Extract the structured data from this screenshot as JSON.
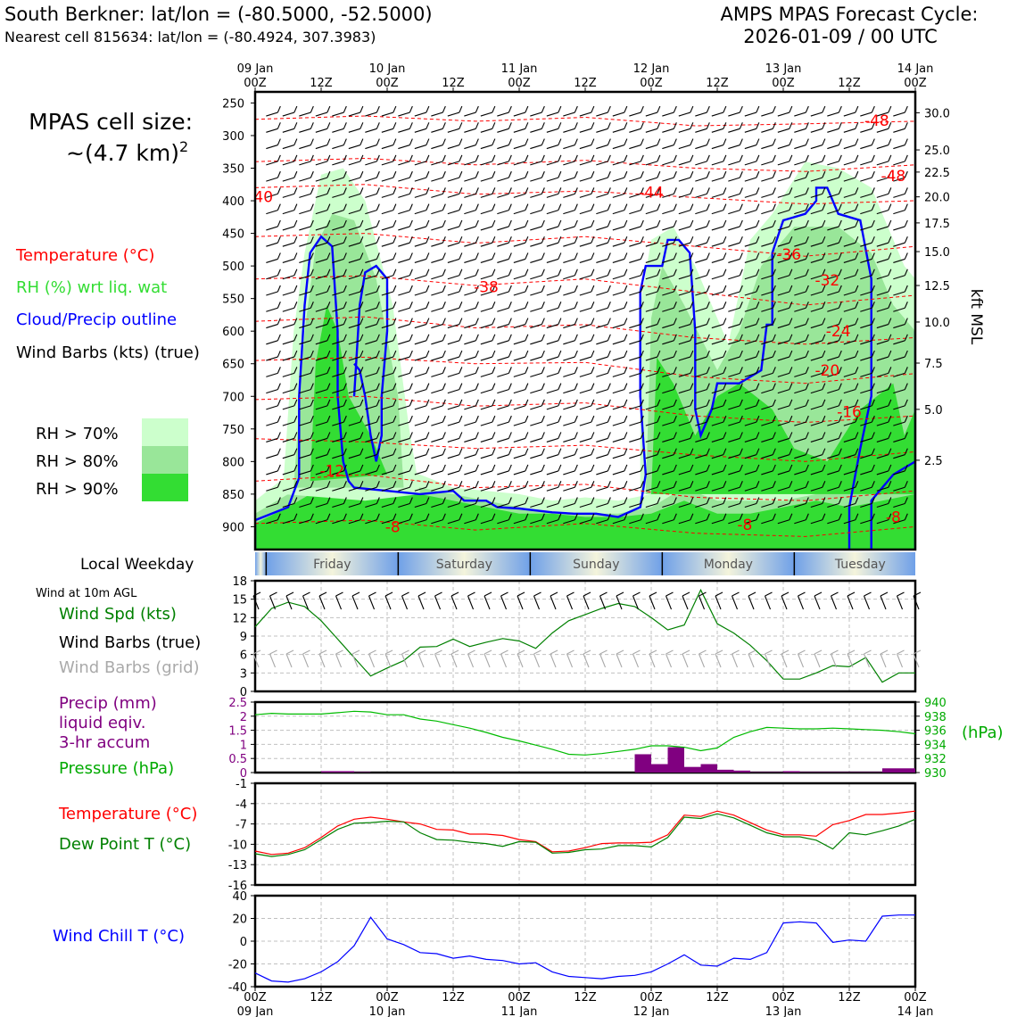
{
  "header": {
    "site_title": "South Berkner: lat/lon = (-80.5000, -52.5000)",
    "nearest_cell": "Nearest cell 815634: lat/lon = (-80.4924, 307.3983)",
    "cycle_line1": "AMPS MPAS Forecast Cycle:",
    "cycle_line2": "2026-01-09 / 00 UTC"
  },
  "legend": {
    "cell_size_line1": "MPAS cell size:",
    "cell_size_line2_base": "~(4.7 km)",
    "cell_size_line2_exp": "2",
    "temperature": "Temperature (°C)",
    "rh": "RH (%) wrt liq. wat",
    "cloud": "Cloud/Precip outline",
    "wind": "Wind Barbs (kts) (true)",
    "rh70": "RH > 70%",
    "rh80": "RH > 80%",
    "rh90": "RH > 90%",
    "local_weekday": "Local Weekday",
    "wind_10m": "Wind at 10m AGL",
    "wind_spd": "Wind Spd (kts)",
    "wind_barbs_true": "Wind Barbs (true)",
    "wind_barbs_grid": "Wind Barbs (grid)",
    "precip_line1": "Precip (mm)",
    "precip_line2": "liquid eqiv.",
    "precip_line3": "3-hr accum",
    "pressure": "Pressure (hPa)",
    "pressure_unit": "(hPa)",
    "temp2": "Temperature (°C)",
    "dewpoint": "Dew Point T (°C)",
    "windchill": "Wind Chill T (°C)",
    "kft_label": "kft MSL"
  },
  "colors": {
    "temperature": "#ff0000",
    "rh": "#33dd33",
    "cloud": "#0000ff",
    "dewpoint": "#008000",
    "precip": "#800080",
    "windchill": "#0000ff",
    "grid_barb": "#aaaaaa"
  },
  "weekdays": [
    "Friday",
    "Saturday",
    "Sunday",
    "Monday",
    "Tuesday"
  ],
  "top_axis": [
    {
      "l1": "09 Jan",
      "l2": "00Z"
    },
    {
      "l1": "",
      "l2": "12Z"
    },
    {
      "l1": "10 Jan",
      "l2": "00Z"
    },
    {
      "l1": "",
      "l2": "12Z"
    },
    {
      "l1": "11 Jan",
      "l2": "00Z"
    },
    {
      "l1": "",
      "l2": "12Z"
    },
    {
      "l1": "12 Jan",
      "l2": "00Z"
    },
    {
      "l1": "",
      "l2": "12Z"
    },
    {
      "l1": "13 Jan",
      "l2": "00Z"
    },
    {
      "l1": "",
      "l2": "12Z"
    },
    {
      "l1": "14 Jan",
      "l2": "00Z"
    }
  ],
  "chart_data": [
    {
      "type": "heatmap",
      "name": "time-height cross section",
      "x_hours": [
        0,
        120
      ],
      "y_pressure_ticks": [
        250,
        300,
        350,
        400,
        450,
        500,
        550,
        600,
        650,
        700,
        750,
        800,
        850,
        900
      ],
      "y_kft_ticks": [
        "30.0",
        "25.0",
        "22.5",
        "20.0",
        "17.5",
        "15.0",
        "12.5",
        "10.0",
        "7.5",
        "5.0",
        "2.5"
      ],
      "y_kft_pressures": [
        265,
        322,
        356,
        394,
        434,
        478,
        530,
        586,
        649,
        720,
        798
      ],
      "temperature_labels": [
        {
          "text": "-48",
          "hour": 113,
          "p": 285
        },
        {
          "text": "-48",
          "hour": 116,
          "p": 370
        },
        {
          "text": "-40",
          "hour": 1,
          "p": 402
        },
        {
          "text": "-44",
          "hour": 72,
          "p": 395
        },
        {
          "text": "-36",
          "hour": 97,
          "p": 490
        },
        {
          "text": "-38",
          "hour": 42,
          "p": 540
        },
        {
          "text": "-32",
          "hour": 104,
          "p": 530
        },
        {
          "text": "-24",
          "hour": 106,
          "p": 608
        },
        {
          "text": "-20",
          "hour": 104,
          "p": 668
        },
        {
          "text": "-16",
          "hour": 108,
          "p": 732
        },
        {
          "text": "-12",
          "hour": 14,
          "p": 822
        },
        {
          "text": "-8",
          "hour": 25,
          "p": 908
        },
        {
          "text": "-8",
          "hour": 89,
          "p": 905
        },
        {
          "text": "-8",
          "hour": 116,
          "p": 893
        }
      ],
      "rh_levels": [
        "> 70%",
        "> 80%",
        "> 90%"
      ]
    },
    {
      "type": "line",
      "name": "10 m wind speed",
      "title": "Wind at 10m AGL",
      "ylabel": "Wind Spd (kts)",
      "ylim": [
        0,
        18
      ],
      "y_ticks": [
        0,
        3,
        6,
        9,
        12,
        15,
        18
      ],
      "x_hours": [
        0,
        3,
        6,
        9,
        12,
        15,
        18,
        21,
        24,
        27,
        30,
        33,
        36,
        39,
        42,
        45,
        48,
        51,
        54,
        57,
        60,
        63,
        66,
        69,
        72,
        75,
        78,
        81,
        84,
        87,
        90,
        93,
        96,
        99,
        102,
        105,
        108,
        111,
        114,
        117,
        120
      ],
      "values": [
        10.5,
        13.5,
        14.5,
        13.8,
        11.5,
        8.5,
        5.5,
        2.5,
        3.8,
        5.0,
        7.2,
        7.3,
        8.5,
        7.3,
        8.0,
        8.6,
        8.2,
        7.0,
        9.5,
        11.5,
        12.5,
        13.5,
        14.3,
        13.8,
        12.0,
        10.0,
        10.8,
        16.5,
        11.0,
        9.5,
        7.5,
        5.0,
        2.0,
        2.0,
        3.0,
        4.2,
        4.0,
        5.5,
        1.5,
        3.0,
        3.0
      ]
    },
    {
      "type": "bar",
      "name": "precipitation",
      "ylabel": "Precip (mm)",
      "ylim": [
        0,
        2.5
      ],
      "y_ticks": [
        0,
        0.5,
        1.0,
        1.5,
        2.0,
        2.5
      ],
      "x_hours": [
        15,
        18,
        21,
        72,
        75,
        78,
        81,
        84,
        87,
        90,
        93,
        96,
        99,
        102,
        105,
        108,
        111,
        114,
        117,
        120
      ],
      "values": [
        0.05,
        0.05,
        0.02,
        0.65,
        0.3,
        0.9,
        0.2,
        0.3,
        0.1,
        0.07,
        0.02,
        0.02,
        0.05,
        0.02,
        0.02,
        0.02,
        0.02,
        0.02,
        0.15,
        0.15
      ]
    },
    {
      "type": "line",
      "name": "surface pressure",
      "ylabel": "Pressure (hPa)",
      "ylim": [
        930,
        940
      ],
      "y_ticks": [
        930,
        932,
        934,
        936,
        938,
        940
      ],
      "x_hours": [
        0,
        3,
        6,
        9,
        12,
        15,
        18,
        21,
        24,
        27,
        30,
        33,
        36,
        39,
        42,
        45,
        48,
        51,
        54,
        57,
        60,
        63,
        66,
        69,
        72,
        75,
        78,
        81,
        84,
        87,
        90,
        93,
        96,
        99,
        102,
        105,
        108,
        111,
        114,
        117,
        120
      ],
      "values": [
        938.2,
        938.4,
        938.3,
        938.3,
        938.3,
        938.5,
        938.7,
        938.6,
        938.2,
        938.2,
        937.6,
        937.3,
        936.8,
        936.3,
        935.7,
        935.0,
        934.5,
        933.9,
        933.3,
        932.6,
        932.5,
        932.7,
        933.0,
        933.3,
        933.8,
        933.8,
        933.6,
        933.1,
        933.5,
        935.0,
        935.8,
        936.4,
        936.3,
        936.2,
        936.2,
        936.3,
        936.2,
        936.1,
        936.0,
        935.8,
        935.5
      ]
    },
    {
      "type": "line",
      "name": "temperature and dew point",
      "ylim": [
        -16,
        -1
      ],
      "y_ticks": [
        -16,
        -13,
        -10,
        -7,
        -4,
        -1
      ],
      "x_hours": [
        0,
        3,
        6,
        9,
        12,
        15,
        18,
        21,
        24,
        27,
        30,
        33,
        36,
        39,
        42,
        45,
        48,
        51,
        54,
        57,
        60,
        63,
        66,
        69,
        72,
        75,
        78,
        81,
        84,
        87,
        90,
        93,
        96,
        99,
        102,
        105,
        108,
        111,
        114,
        117,
        120
      ],
      "series": [
        {
          "name": "Temperature (°C)",
          "values": [
            -11.0,
            -11.5,
            -11.3,
            -10.5,
            -9.0,
            -7.3,
            -6.3,
            -6.0,
            -6.3,
            -6.7,
            -7.0,
            -7.8,
            -7.9,
            -8.5,
            -8.5,
            -8.7,
            -9.3,
            -9.6,
            -11.1,
            -11.0,
            -10.5,
            -9.9,
            -9.8,
            -9.8,
            -9.7,
            -8.6,
            -5.7,
            -5.9,
            -5.1,
            -5.7,
            -6.8,
            -7.9,
            -8.6,
            -8.6,
            -8.8,
            -7.1,
            -6.5,
            -5.6,
            -5.6,
            -5.4,
            -5.1
          ]
        },
        {
          "name": "Dew Point T (°C)",
          "values": [
            -11.4,
            -11.8,
            -11.5,
            -10.8,
            -9.3,
            -7.8,
            -6.9,
            -6.8,
            -6.6,
            -6.7,
            -8.3,
            -9.3,
            -9.4,
            -9.7,
            -9.9,
            -10.3,
            -9.6,
            -9.7,
            -11.3,
            -11.2,
            -10.8,
            -10.7,
            -10.2,
            -10.2,
            -10.4,
            -9.0,
            -6.0,
            -6.2,
            -5.5,
            -6.1,
            -7.2,
            -8.3,
            -8.9,
            -8.9,
            -9.4,
            -10.7,
            -8.3,
            -8.6,
            -8.0,
            -7.3,
            -6.3
          ]
        }
      ]
    },
    {
      "type": "line",
      "name": "wind chill",
      "ylabel": "Wind Chill T (°C)",
      "ylim": [
        -40,
        40
      ],
      "y_ticks": [
        -40,
        -20,
        0,
        20,
        40
      ],
      "x_hours": [
        0,
        3,
        6,
        9,
        12,
        15,
        18,
        21,
        24,
        27,
        30,
        33,
        36,
        39,
        42,
        45,
        48,
        51,
        54,
        57,
        60,
        63,
        66,
        69,
        72,
        75,
        78,
        81,
        84,
        87,
        90,
        93,
        96,
        99,
        102,
        105,
        108,
        111,
        114,
        117,
        120
      ],
      "values": [
        -28,
        -35,
        -36,
        -33,
        -27,
        -18,
        -4,
        21,
        2,
        -3,
        -10,
        -11,
        -15,
        -13,
        -16,
        -17,
        -20,
        -19,
        -27,
        -31,
        -32,
        -33,
        -31,
        -30,
        -27,
        -20,
        -12,
        -21,
        -22,
        -15,
        -16,
        -10,
        16,
        17,
        16,
        -1,
        1,
        0,
        22,
        23,
        23
      ]
    }
  ],
  "bottom_axis": [
    {
      "l1": "00Z",
      "l2": "09 Jan"
    },
    {
      "l1": "12Z",
      "l2": ""
    },
    {
      "l1": "00Z",
      "l2": "10 Jan"
    },
    {
      "l1": "12Z",
      "l2": ""
    },
    {
      "l1": "00Z",
      "l2": "11 Jan"
    },
    {
      "l1": "12Z",
      "l2": ""
    },
    {
      "l1": "00Z",
      "l2": "12 Jan"
    },
    {
      "l1": "12Z",
      "l2": ""
    },
    {
      "l1": "00Z",
      "l2": "13 Jan"
    },
    {
      "l1": "12Z",
      "l2": ""
    },
    {
      "l1": "00Z",
      "l2": "14 Jan"
    }
  ]
}
